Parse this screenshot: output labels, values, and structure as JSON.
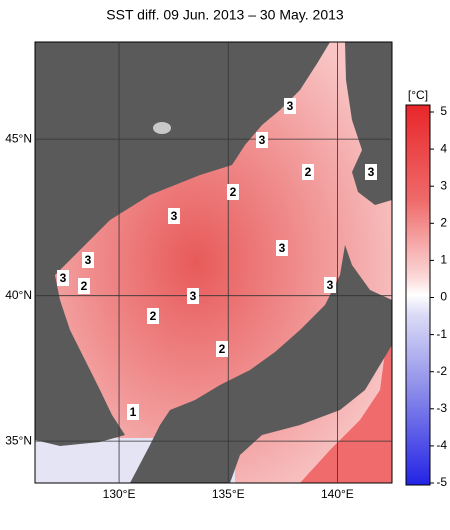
{
  "title": "SST diff. 09 Jun. 2013 – 30 May. 2013",
  "map": {
    "xlim": [
      126.15,
      142.5
    ],
    "ylim": [
      33.5,
      47.9
    ],
    "xticks": [
      {
        "value": 130,
        "label": "130°E"
      },
      {
        "value": 135,
        "label": "135°E"
      },
      {
        "value": 140,
        "label": "140°E"
      }
    ],
    "yticks": [
      {
        "value": 35,
        "label": "35°N"
      },
      {
        "value": 40,
        "label": "40°N"
      },
      {
        "value": 45,
        "label": "45°N"
      }
    ],
    "contour_labels": [
      3,
      3,
      2,
      3,
      2,
      3,
      3,
      3,
      3,
      2,
      3,
      3,
      2,
      2,
      1
    ]
  },
  "colorbar": {
    "unit": "[°C]",
    "clim": [
      -5,
      5
    ],
    "ticks": [
      5,
      4,
      3,
      2,
      1,
      0,
      -1,
      -2,
      -3,
      -4,
      -5
    ]
  }
}
